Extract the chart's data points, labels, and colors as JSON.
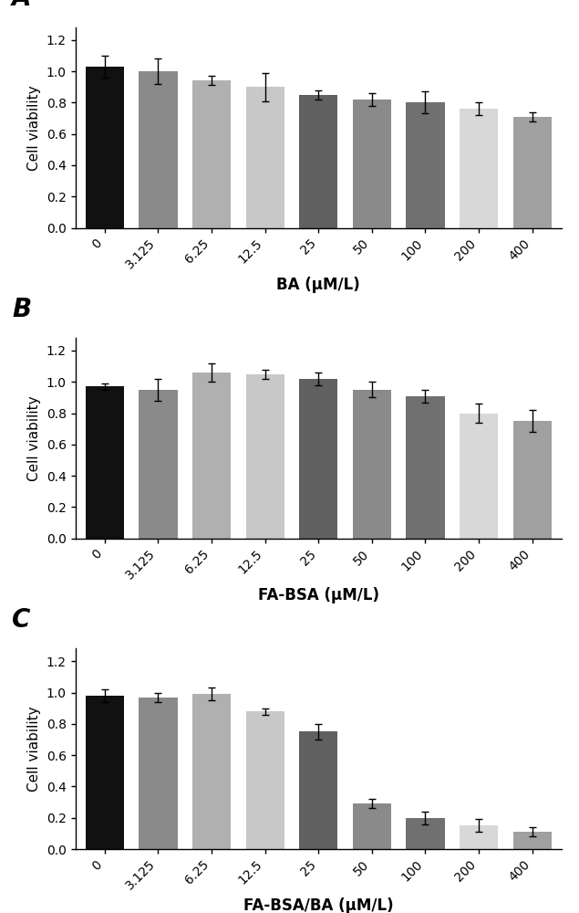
{
  "categories": [
    "0",
    "3.125",
    "6.25",
    "12.5",
    "25",
    "50",
    "100",
    "200",
    "400"
  ],
  "panel_A": {
    "label": "A",
    "values": [
      1.03,
      1.0,
      0.94,
      0.9,
      0.85,
      0.82,
      0.8,
      0.76,
      0.71
    ],
    "errors": [
      0.07,
      0.08,
      0.03,
      0.09,
      0.03,
      0.04,
      0.07,
      0.04,
      0.03
    ],
    "xlabel": "BA (μM/L)",
    "ylabel": "Cell viability",
    "ylim": [
      0,
      1.28
    ]
  },
  "panel_B": {
    "label": "B",
    "values": [
      0.97,
      0.95,
      1.06,
      1.05,
      1.02,
      0.95,
      0.91,
      0.8,
      0.75
    ],
    "errors": [
      0.02,
      0.07,
      0.06,
      0.03,
      0.04,
      0.05,
      0.04,
      0.06,
      0.07
    ],
    "xlabel": "FA-BSA (μM/L)",
    "ylabel": "Cell viability",
    "ylim": [
      0,
      1.28
    ]
  },
  "panel_C": {
    "label": "C",
    "values": [
      0.98,
      0.97,
      0.99,
      0.88,
      0.75,
      0.29,
      0.2,
      0.15,
      0.11
    ],
    "errors": [
      0.04,
      0.03,
      0.04,
      0.02,
      0.05,
      0.03,
      0.04,
      0.04,
      0.03
    ],
    "xlabel": "FA-BSA/BA (μM/L)",
    "ylabel": "Cell viability",
    "ylim": [
      0,
      1.28
    ]
  },
  "bar_colors": [
    "#111111",
    "#8a8a8a",
    "#b0b0b0",
    "#c8c8c8",
    "#606060",
    "#8a8a8a",
    "#707070",
    "#d8d8d8",
    "#a0a0a0"
  ],
  "yticks": [
    0.0,
    0.2,
    0.4,
    0.6,
    0.8,
    1.0,
    1.2
  ],
  "background_color": "#ffffff",
  "label_fontsize": 20,
  "tick_fontsize": 10,
  "ylabel_fontsize": 11,
  "xlabel_fontsize": 12
}
